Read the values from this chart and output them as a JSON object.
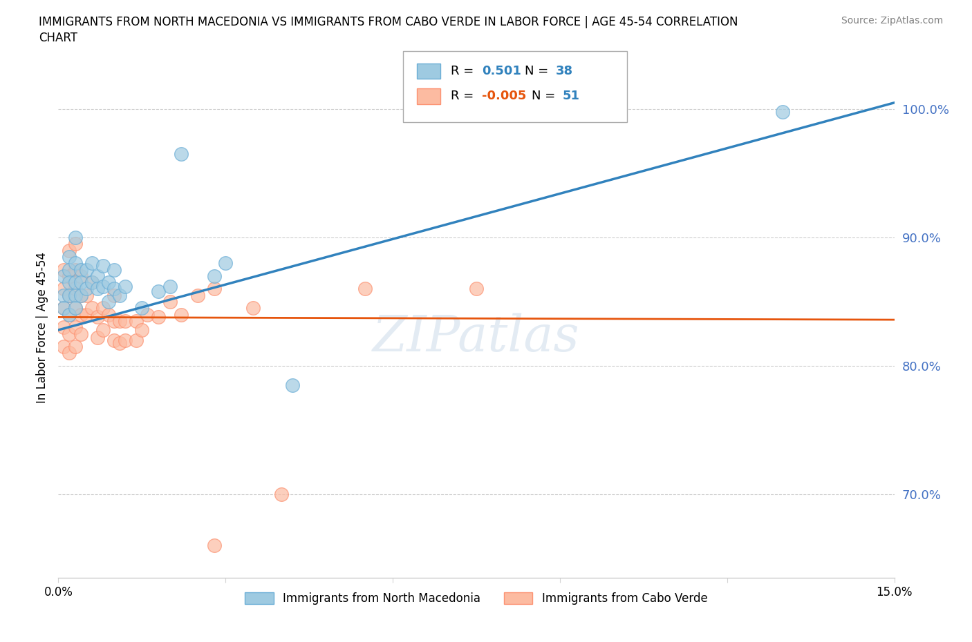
{
  "title_line1": "IMMIGRANTS FROM NORTH MACEDONIA VS IMMIGRANTS FROM CABO VERDE IN LABOR FORCE | AGE 45-54 CORRELATION",
  "title_line2": "CHART",
  "source_text": "Source: ZipAtlas.com",
  "ylabel": "In Labor Force | Age 45-54",
  "xlim": [
    0.0,
    0.15
  ],
  "ylim": [
    0.635,
    1.025
  ],
  "yticks": [
    0.7,
    0.8,
    0.9,
    1.0
  ],
  "ytick_labels": [
    "70.0%",
    "80.0%",
    "90.0%",
    "100.0%"
  ],
  "xticks": [
    0.0,
    0.03,
    0.06,
    0.09,
    0.12,
    0.15
  ],
  "xtick_labels": [
    "0.0%",
    "",
    "",
    "",
    "",
    "15.0%"
  ],
  "legend_r_blue": "0.501",
  "legend_n_blue": "38",
  "legend_r_pink": "-0.005",
  "legend_n_pink": "51",
  "blue_color": "#9ecae1",
  "pink_color": "#fcbba1",
  "blue_edge_color": "#6baed6",
  "pink_edge_color": "#fc9272",
  "blue_line_color": "#3182bd",
  "pink_line_color": "#e6550d",
  "watermark": "ZIPatlas",
  "ytick_color": "#4472C4",
  "scatter_blue": [
    [
      0.001,
      0.87
    ],
    [
      0.001,
      0.855
    ],
    [
      0.001,
      0.845
    ],
    [
      0.002,
      0.885
    ],
    [
      0.002,
      0.875
    ],
    [
      0.002,
      0.865
    ],
    [
      0.002,
      0.855
    ],
    [
      0.002,
      0.84
    ],
    [
      0.003,
      0.9
    ],
    [
      0.003,
      0.88
    ],
    [
      0.003,
      0.865
    ],
    [
      0.003,
      0.855
    ],
    [
      0.003,
      0.845
    ],
    [
      0.004,
      0.875
    ],
    [
      0.004,
      0.865
    ],
    [
      0.004,
      0.855
    ],
    [
      0.005,
      0.875
    ],
    [
      0.005,
      0.86
    ],
    [
      0.006,
      0.88
    ],
    [
      0.006,
      0.865
    ],
    [
      0.007,
      0.87
    ],
    [
      0.007,
      0.86
    ],
    [
      0.008,
      0.878
    ],
    [
      0.008,
      0.862
    ],
    [
      0.009,
      0.865
    ],
    [
      0.009,
      0.85
    ],
    [
      0.01,
      0.875
    ],
    [
      0.01,
      0.86
    ],
    [
      0.011,
      0.855
    ],
    [
      0.012,
      0.862
    ],
    [
      0.015,
      0.845
    ],
    [
      0.018,
      0.858
    ],
    [
      0.02,
      0.862
    ],
    [
      0.022,
      0.965
    ],
    [
      0.028,
      0.87
    ],
    [
      0.03,
      0.88
    ],
    [
      0.042,
      0.785
    ],
    [
      0.13,
      0.998
    ]
  ],
  "scatter_pink": [
    [
      0.001,
      0.875
    ],
    [
      0.001,
      0.86
    ],
    [
      0.001,
      0.845
    ],
    [
      0.001,
      0.83
    ],
    [
      0.001,
      0.815
    ],
    [
      0.002,
      0.89
    ],
    [
      0.002,
      0.87
    ],
    [
      0.002,
      0.855
    ],
    [
      0.002,
      0.84
    ],
    [
      0.002,
      0.825
    ],
    [
      0.002,
      0.81
    ],
    [
      0.003,
      0.895
    ],
    [
      0.003,
      0.875
    ],
    [
      0.003,
      0.86
    ],
    [
      0.003,
      0.845
    ],
    [
      0.003,
      0.83
    ],
    [
      0.003,
      0.815
    ],
    [
      0.004,
      0.87
    ],
    [
      0.004,
      0.855
    ],
    [
      0.004,
      0.84
    ],
    [
      0.004,
      0.825
    ],
    [
      0.005,
      0.855
    ],
    [
      0.005,
      0.84
    ],
    [
      0.006,
      0.865
    ],
    [
      0.006,
      0.845
    ],
    [
      0.007,
      0.838
    ],
    [
      0.007,
      0.822
    ],
    [
      0.008,
      0.845
    ],
    [
      0.008,
      0.828
    ],
    [
      0.009,
      0.84
    ],
    [
      0.01,
      0.855
    ],
    [
      0.01,
      0.835
    ],
    [
      0.01,
      0.82
    ],
    [
      0.011,
      0.835
    ],
    [
      0.011,
      0.818
    ],
    [
      0.012,
      0.835
    ],
    [
      0.012,
      0.82
    ],
    [
      0.014,
      0.835
    ],
    [
      0.014,
      0.82
    ],
    [
      0.015,
      0.828
    ],
    [
      0.016,
      0.84
    ],
    [
      0.018,
      0.838
    ],
    [
      0.02,
      0.85
    ],
    [
      0.022,
      0.84
    ],
    [
      0.025,
      0.855
    ],
    [
      0.028,
      0.86
    ],
    [
      0.035,
      0.845
    ],
    [
      0.055,
      0.86
    ],
    [
      0.075,
      0.86
    ],
    [
      0.04,
      0.7
    ],
    [
      0.028,
      0.66
    ]
  ],
  "blue_line_x": [
    0.0,
    0.15
  ],
  "blue_line_y": [
    0.828,
    1.005
  ],
  "pink_line_x": [
    0.0,
    0.15
  ],
  "pink_line_y": [
    0.838,
    0.836
  ]
}
